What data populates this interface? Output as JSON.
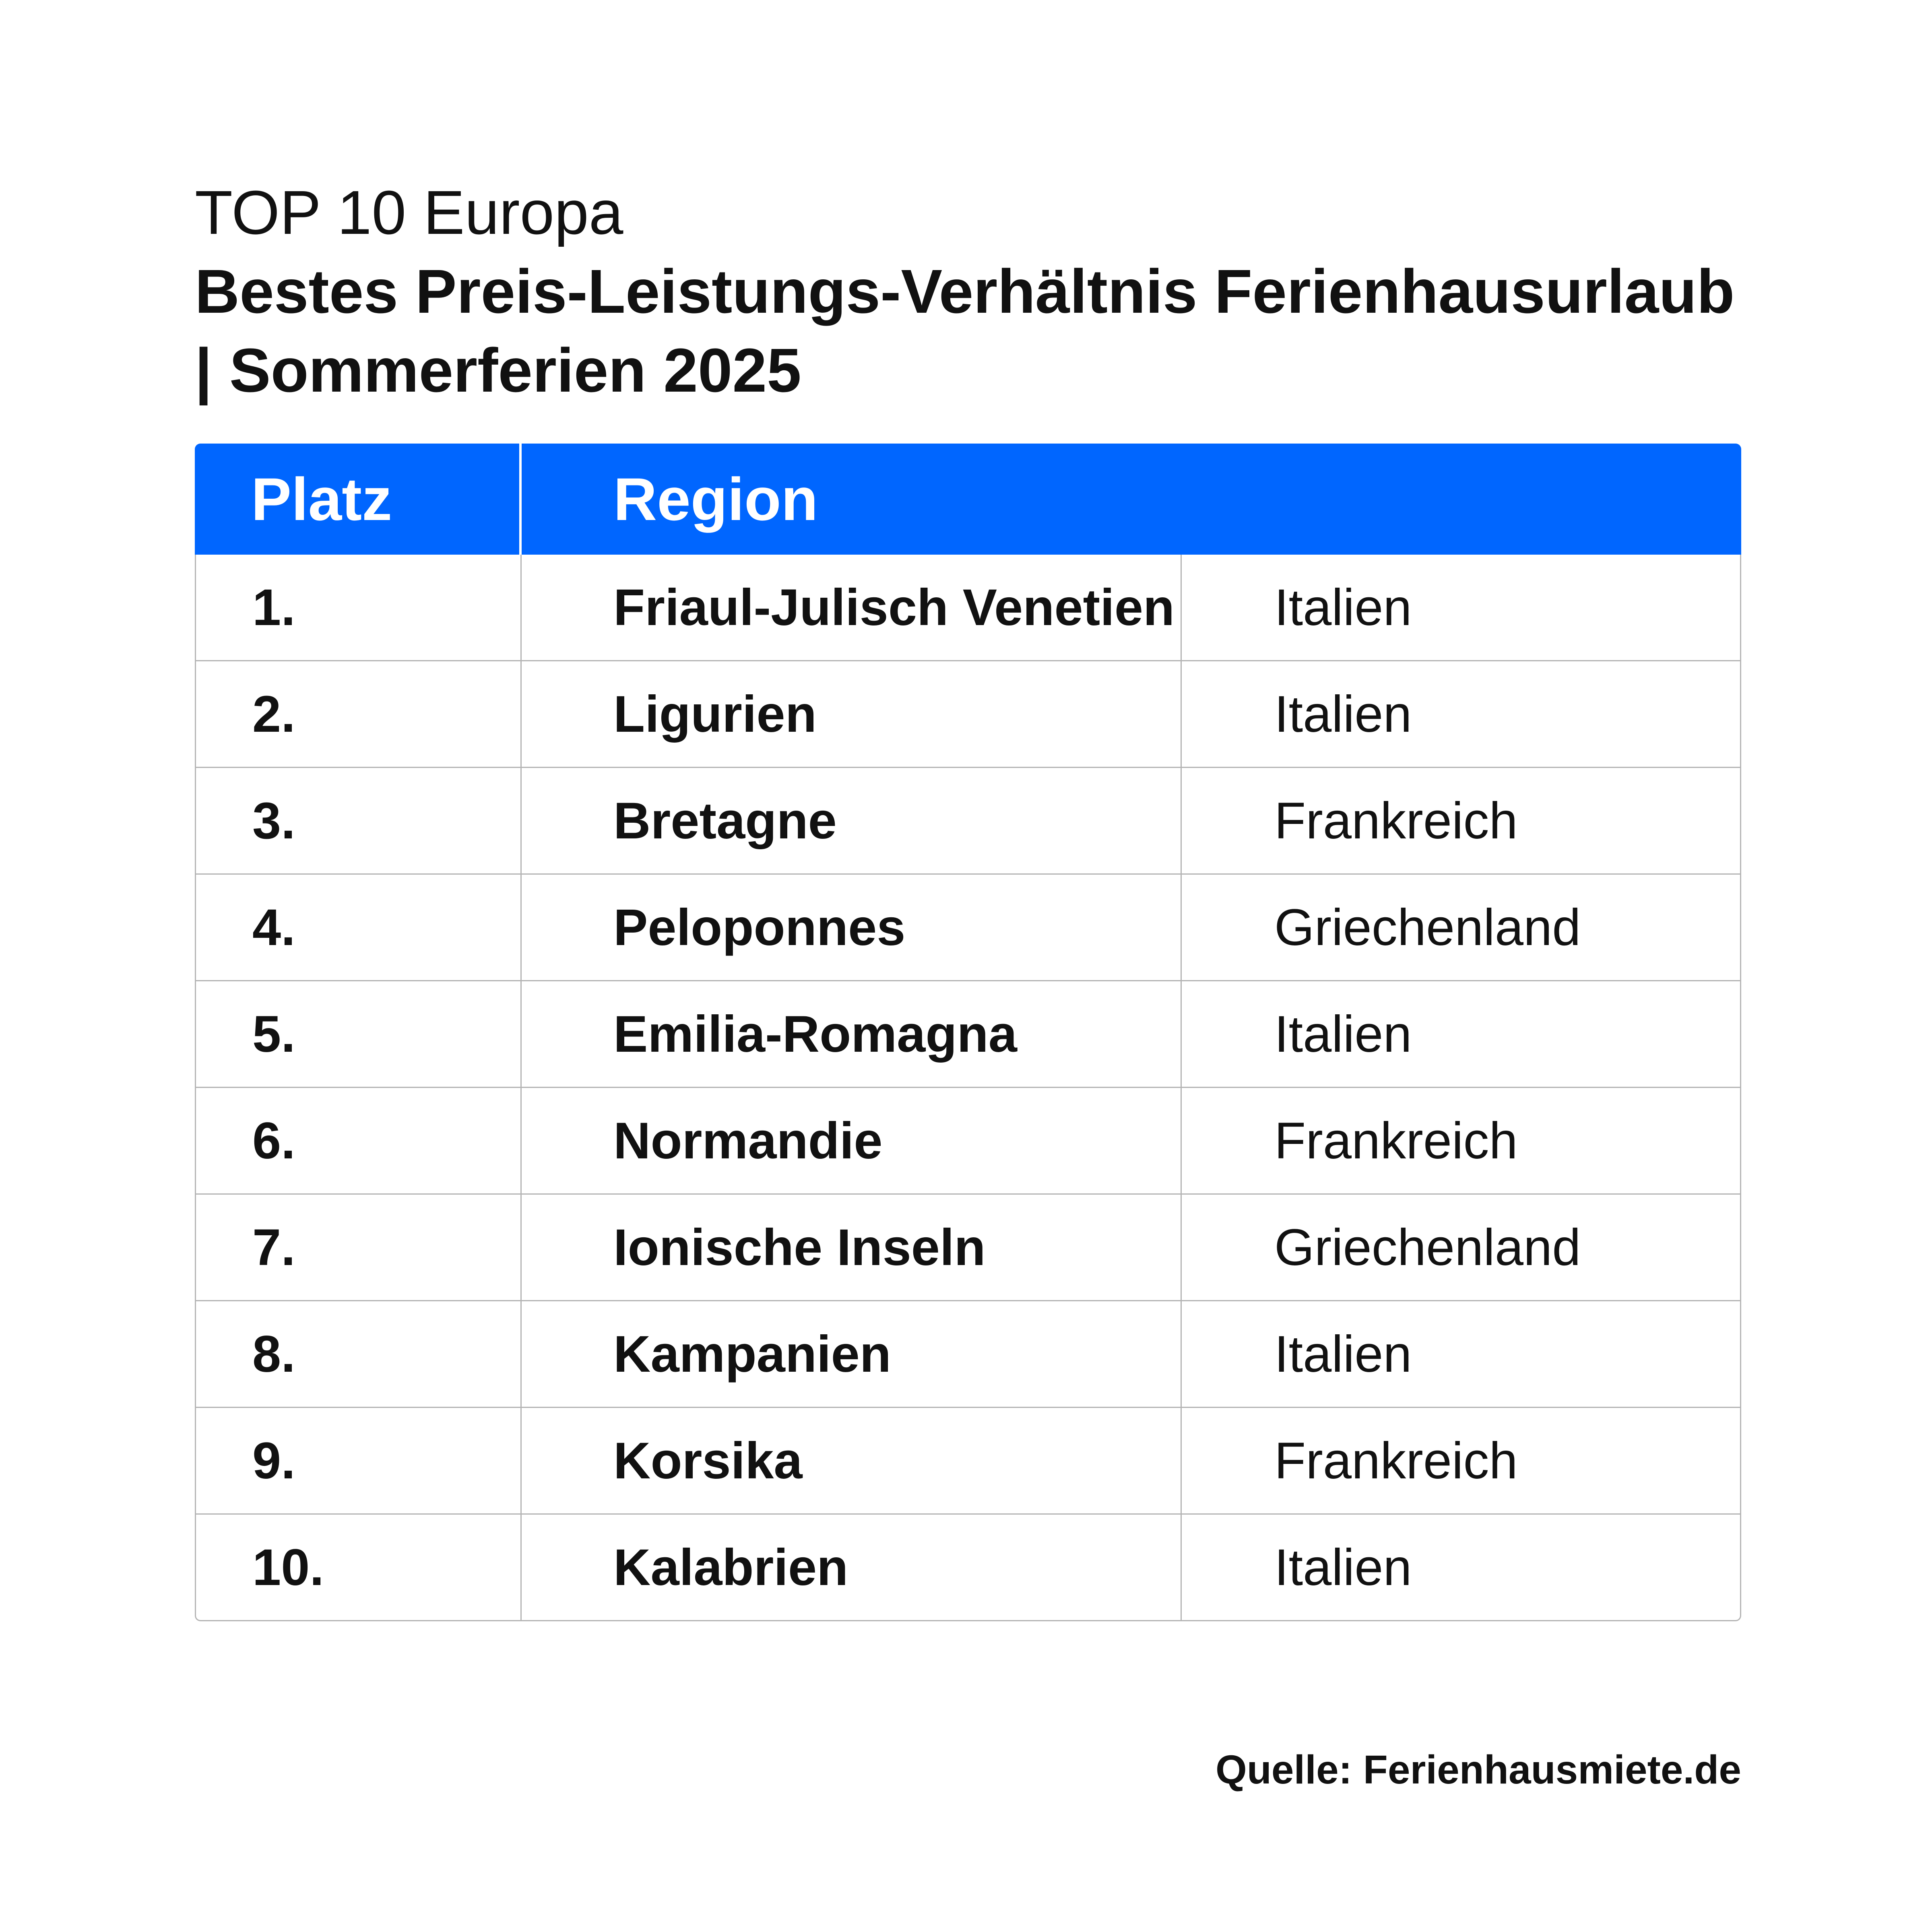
{
  "title": {
    "line1": "TOP 10 Europa",
    "line2": "Bestes Preis-Leistungs-Verhältnis Ferienhausurlaub | Sommerferien 2025"
  },
  "table": {
    "headers": {
      "platz": "Platz",
      "region": "Region"
    },
    "rows": [
      {
        "platz": "1.",
        "region": "Friaul-Julisch Venetien",
        "land": "Italien"
      },
      {
        "platz": "2.",
        "region": "Ligurien",
        "land": "Italien"
      },
      {
        "platz": "3.",
        "region": "Bretagne",
        "land": "Frankreich"
      },
      {
        "platz": "4.",
        "region": "Peloponnes",
        "land": "Griechenland"
      },
      {
        "platz": "5.",
        "region": "Emilia-Romagna",
        "land": "Italien"
      },
      {
        "platz": "6.",
        "region": "Normandie",
        "land": "Frankreich"
      },
      {
        "platz": "7.",
        "region": "Ionische Inseln",
        "land": "Griechenland"
      },
      {
        "platz": "8.",
        "region": "Kampanien",
        "land": "Italien"
      },
      {
        "platz": "9.",
        "region": "Korsika",
        "land": "Frankreich"
      },
      {
        "platz": "10.",
        "region": "Kalabrien",
        "land": "Italien"
      }
    ]
  },
  "source": "Quelle: Ferienhausmiete.de",
  "colors": {
    "header_bg": "#0066ff",
    "header_text": "#ffffff",
    "grid": "#b4b4b4",
    "text": "#111111"
  }
}
